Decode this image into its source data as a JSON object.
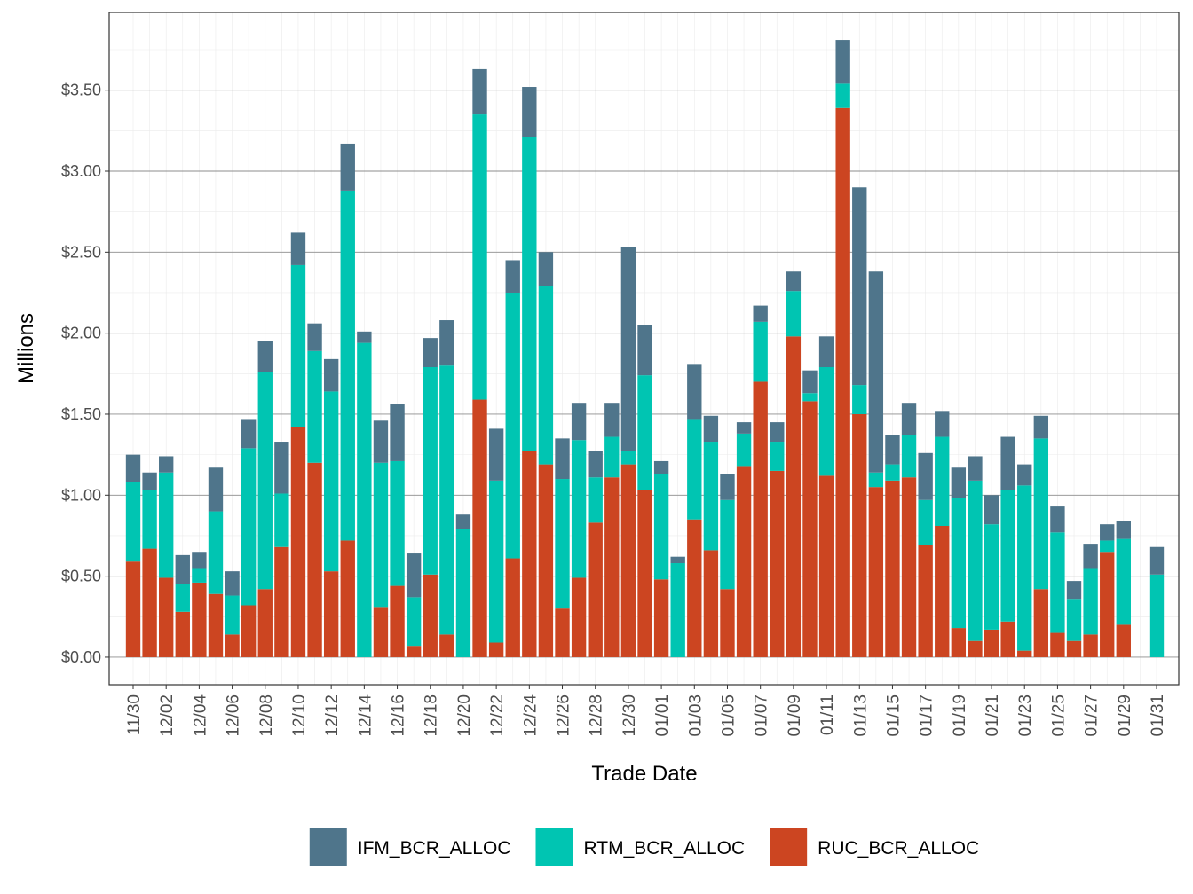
{
  "chart_data": {
    "type": "bar",
    "stacked": true,
    "title": "",
    "xlabel": "Trade Date",
    "ylabel": "Millions",
    "ylim": [
      -0.17,
      3.98
    ],
    "y_ticks": [
      0,
      0.5,
      1.0,
      1.5,
      2.0,
      2.5,
      3.0,
      3.5
    ],
    "y_tick_labels": [
      "$0.00",
      "$0.50",
      "$1.00",
      "$1.50",
      "$2.00",
      "$2.50",
      "$3.00",
      "$3.50"
    ],
    "grid": true,
    "legend_position": "bottom",
    "categories": [
      "11/30",
      "12/01",
      "12/02",
      "12/03",
      "12/04",
      "12/05",
      "12/06",
      "12/07",
      "12/08",
      "12/09",
      "12/10",
      "12/11",
      "12/12",
      "12/13",
      "12/14",
      "12/15",
      "12/16",
      "12/17",
      "12/18",
      "12/19",
      "12/20",
      "12/21",
      "12/22",
      "12/23",
      "12/24",
      "12/25",
      "12/26",
      "12/27",
      "12/28",
      "12/29",
      "12/30",
      "12/31",
      "01/01",
      "01/02",
      "01/03",
      "01/04",
      "01/05",
      "01/06",
      "01/07",
      "01/08",
      "01/09",
      "01/10",
      "01/11",
      "01/12",
      "01/13",
      "01/14",
      "01/15",
      "01/16",
      "01/17",
      "01/18",
      "01/19",
      "01/20",
      "01/21",
      "01/22",
      "01/23",
      "01/24",
      "01/25",
      "01/26",
      "01/27",
      "01/28",
      "01/29",
      "01/30",
      "01/31"
    ],
    "tick_labels": [
      "11/30",
      "12/02",
      "12/04",
      "12/06",
      "12/08",
      "12/10",
      "12/12",
      "12/14",
      "12/16",
      "12/18",
      "12/20",
      "12/22",
      "12/24",
      "12/26",
      "12/28",
      "12/30",
      "01/01",
      "01/03",
      "01/05",
      "01/07",
      "01/09",
      "01/11",
      "01/13",
      "01/15",
      "01/17",
      "01/19",
      "01/21",
      "01/23",
      "01/25",
      "01/27",
      "01/29",
      "01/31"
    ],
    "series": [
      {
        "name": "RUC_BCR_ALLOC",
        "color": "#cc4521",
        "values": [
          0.59,
          0.67,
          0.49,
          0.28,
          0.46,
          0.39,
          0.14,
          0.32,
          0.42,
          0.68,
          1.42,
          1.2,
          0.53,
          0.72,
          0.0,
          0.31,
          0.44,
          0.07,
          0.51,
          0.14,
          0.0,
          1.59,
          0.09,
          0.61,
          1.27,
          1.19,
          0.3,
          0.49,
          0.83,
          1.11,
          1.19,
          1.03,
          0.48,
          0.0,
          0.85,
          0.66,
          0.42,
          1.18,
          1.7,
          1.15,
          1.98,
          1.58,
          1.12,
          3.39,
          1.5,
          1.05,
          1.09,
          1.11,
          0.69,
          0.81,
          0.18,
          0.1,
          0.17,
          0.22,
          0.04,
          0.42,
          0.15,
          0.1,
          0.14,
          0.65,
          0.2,
          0.0,
          0.0
        ]
      },
      {
        "name": "RTM_BCR_ALLOC",
        "color": "#00c5b2",
        "values": [
          0.49,
          0.36,
          0.65,
          0.17,
          0.09,
          0.51,
          0.24,
          0.97,
          1.34,
          0.33,
          1.0,
          0.69,
          1.11,
          2.16,
          1.94,
          0.89,
          0.77,
          0.3,
          1.28,
          1.66,
          0.79,
          1.76,
          1.0,
          1.64,
          1.94,
          1.1,
          0.8,
          0.85,
          0.28,
          0.25,
          0.08,
          0.71,
          0.65,
          0.58,
          0.62,
          0.67,
          0.55,
          0.2,
          0.37,
          0.18,
          0.28,
          0.05,
          0.67,
          0.15,
          0.18,
          0.09,
          0.1,
          0.26,
          0.28,
          0.55,
          0.8,
          0.99,
          0.65,
          0.81,
          1.02,
          0.93,
          0.62,
          0.26,
          0.41,
          0.07,
          0.53,
          0.0,
          0.51
        ]
      },
      {
        "name": "IFM_BCR_ALLOC",
        "color": "#4f758b",
        "values": [
          0.17,
          0.11,
          0.1,
          0.18,
          0.1,
          0.27,
          0.15,
          0.18,
          0.19,
          0.32,
          0.2,
          0.17,
          0.2,
          0.29,
          0.07,
          0.26,
          0.35,
          0.27,
          0.18,
          0.28,
          0.09,
          0.28,
          0.32,
          0.2,
          0.31,
          0.21,
          0.25,
          0.23,
          0.16,
          0.21,
          1.26,
          0.31,
          0.08,
          0.04,
          0.34,
          0.16,
          0.16,
          0.07,
          0.1,
          0.12,
          0.12,
          0.14,
          0.19,
          0.27,
          1.22,
          1.24,
          0.18,
          0.2,
          0.29,
          0.16,
          0.19,
          0.15,
          0.18,
          0.33,
          0.13,
          0.14,
          0.16,
          0.11,
          0.15,
          0.1,
          0.11,
          0.0,
          0.17
        ]
      }
    ]
  },
  "legend": {
    "items": [
      {
        "label": "IFM_BCR_ALLOC",
        "color": "#4f758b"
      },
      {
        "label": "RTM_BCR_ALLOC",
        "color": "#00c5b2"
      },
      {
        "label": "RUC_BCR_ALLOC",
        "color": "#cc4521"
      }
    ]
  }
}
